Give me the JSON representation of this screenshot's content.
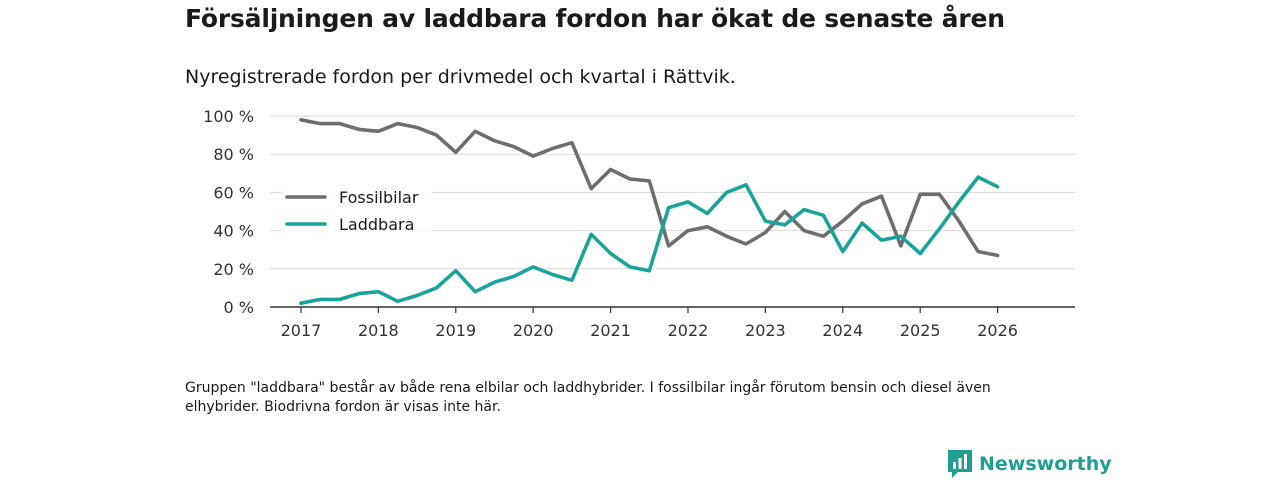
{
  "title": "Försäljningen av laddbara fordon har ökat de senaste åren",
  "subtitle": "Nyregistrerade fordon per drivmedel och kvartal i Rättvik.",
  "note": "Gruppen \"laddbara\" består av både rena elbilar och laddhybrider. I fossilbilar ingår förutom bensin och diesel även elhybrider. Biodrivna fordon är visas inte här.",
  "brand": {
    "name": "Newsworthy"
  },
  "chart_data": {
    "type": "line",
    "title": "Försäljningen av laddbara fordon har ökat de senaste åren",
    "subtitle": "Nyregistrerade fordon per drivmedel och kvartal i Rättvik.",
    "xlabel": "",
    "ylabel": "",
    "x": [
      2017.0,
      2017.25,
      2017.5,
      2017.75,
      2018.0,
      2018.25,
      2018.5,
      2018.75,
      2019.0,
      2019.25,
      2019.5,
      2019.75,
      2020.0,
      2020.25,
      2020.5,
      2020.75,
      2021.0,
      2021.25,
      2021.5,
      2021.75,
      2022.0,
      2022.25,
      2022.5,
      2022.75,
      2023.0,
      2023.25,
      2023.5,
      2023.75,
      2024.0,
      2024.25,
      2024.5,
      2024.75,
      2025.0,
      2025.25,
      2025.5,
      2025.75,
      2026.0
    ],
    "xlim": [
      2016.6,
      2027.0
    ],
    "ylim": [
      0,
      100
    ],
    "yticks": [
      0,
      20,
      40,
      60,
      80,
      100
    ],
    "yticklabels": [
      "0 %",
      "20 %",
      "40 %",
      "60 %",
      "80 %",
      "100 %"
    ],
    "xticks": [
      2017,
      2018,
      2019,
      2020,
      2021,
      2022,
      2023,
      2024,
      2025,
      2026
    ],
    "xticklabels": [
      "2017",
      "2018",
      "2019",
      "2020",
      "2021",
      "2022",
      "2023",
      "2024",
      "2025",
      "2026"
    ],
    "grid": true,
    "legend_position": "left",
    "series": [
      {
        "name": "Fossilbilar",
        "color": "#6e6d70",
        "values": [
          98,
          96,
          96,
          93,
          92,
          96,
          94,
          90,
          81,
          92,
          87,
          84,
          79,
          83,
          86,
          62,
          72,
          67,
          66,
          32,
          40,
          42,
          37,
          33,
          39,
          50,
          40,
          37,
          45,
          54,
          58,
          32,
          59,
          59,
          45,
          29,
          27
        ]
      },
      {
        "name": "Laddbara",
        "color": "#1aa39a",
        "values": [
          2,
          4,
          4,
          7,
          8,
          3,
          6,
          10,
          19,
          8,
          13,
          16,
          21,
          17,
          14,
          38,
          28,
          21,
          19,
          52,
          55,
          49,
          60,
          64,
          45,
          43,
          51,
          48,
          29,
          44,
          35,
          37,
          28,
          41,
          55,
          68,
          63
        ]
      }
    ]
  }
}
